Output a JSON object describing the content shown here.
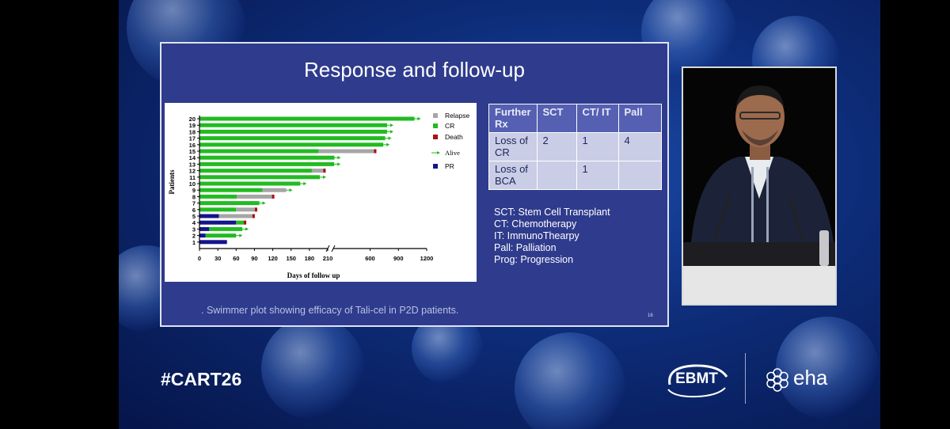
{
  "slide": {
    "title": "Response and follow-up",
    "caption": ". Swimmer plot showing efficacy of Tali-cel in P2D patients.",
    "page_number": "16",
    "table": {
      "header": [
        "Further Rx",
        "SCT",
        "CT/ IT",
        "Pall"
      ],
      "rows": [
        [
          "Loss of CR",
          "2",
          "1",
          "4"
        ],
        [
          "Loss of BCA",
          "",
          "1",
          ""
        ]
      ]
    },
    "abbreviations": [
      "SCT: Stem Cell Transplant",
      "CT: Chemotherapy",
      "IT: ImmunoThearpy",
      "Pall: Palliation",
      "Prog: Progression"
    ]
  },
  "footer": {
    "hashtag": "#CART26",
    "logo_left": "EBMT",
    "logo_right": "eha"
  },
  "colors": {
    "CR": "#22bb22",
    "Relapse": "#a6a6a6",
    "Death": "#aa1111",
    "Alive": "#22bb22",
    "PR": "#14148c"
  },
  "chart_data": {
    "type": "bar",
    "subtype": "swimmer",
    "xlabel": "Days of follow up",
    "ylabel": "Patients",
    "x_ticks": [
      "0",
      "30",
      "60",
      "90",
      "120",
      "150",
      "180",
      "210",
      "600",
      "900",
      "1200"
    ],
    "x_axis_break": "between 210 and 600",
    "legend": [
      "Relapse",
      "CR",
      "Death",
      "Alive",
      "PR"
    ],
    "legend_position": "right",
    "patients": [
      {
        "id": "20",
        "segments": [
          {
            "status": "CR",
            "from": 0,
            "to": 1070
          }
        ],
        "alive": true
      },
      {
        "id": "19",
        "segments": [
          {
            "status": "CR",
            "from": 0,
            "to": 780
          }
        ],
        "alive": true
      },
      {
        "id": "18",
        "segments": [
          {
            "status": "CR",
            "from": 0,
            "to": 780
          }
        ],
        "alive": true
      },
      {
        "id": "17",
        "segments": [
          {
            "status": "CR",
            "from": 0,
            "to": 760
          }
        ],
        "alive": true
      },
      {
        "id": "16",
        "segments": [
          {
            "status": "CR",
            "from": 0,
            "to": 740
          }
        ],
        "alive": true
      },
      {
        "id": "15",
        "segments": [
          {
            "status": "CR",
            "from": 0,
            "to": 195
          },
          {
            "status": "Relapse",
            "from": 195,
            "to": 650
          }
        ],
        "death": true
      },
      {
        "id": "14",
        "segments": [
          {
            "status": "CR",
            "from": 0,
            "to": 222
          }
        ],
        "alive": true
      },
      {
        "id": "13",
        "segments": [
          {
            "status": "CR",
            "from": 0,
            "to": 220
          }
        ],
        "alive": true
      },
      {
        "id": "12",
        "segments": [
          {
            "status": "CR",
            "from": 0,
            "to": 184
          },
          {
            "status": "Relapse",
            "from": 184,
            "to": 204
          }
        ],
        "death": true
      },
      {
        "id": "11",
        "segments": [
          {
            "status": "CR",
            "from": 0,
            "to": 197
          }
        ],
        "alive": true
      },
      {
        "id": "10",
        "segments": [
          {
            "status": "CR",
            "from": 0,
            "to": 165
          }
        ],
        "alive": true
      },
      {
        "id": "9",
        "segments": [
          {
            "status": "CR",
            "from": 0,
            "to": 103
          },
          {
            "status": "Relapse",
            "from": 103,
            "to": 142
          }
        ],
        "alive": true
      },
      {
        "id": "8",
        "segments": [
          {
            "status": "CR",
            "from": 0,
            "to": 61
          },
          {
            "status": "Relapse",
            "from": 61,
            "to": 120
          }
        ],
        "death": true
      },
      {
        "id": "7",
        "segments": [
          {
            "status": "CR",
            "from": 0,
            "to": 98
          }
        ],
        "alive": true
      },
      {
        "id": "6",
        "segments": [
          {
            "status": "CR",
            "from": 0,
            "to": 60
          },
          {
            "status": "Relapse",
            "from": 60,
            "to": 92
          }
        ],
        "death": true
      },
      {
        "id": "5",
        "segments": [
          {
            "status": "PR",
            "from": 0,
            "to": 32
          },
          {
            "status": "Relapse",
            "from": 32,
            "to": 88
          }
        ],
        "death": true
      },
      {
        "id": "4",
        "segments": [
          {
            "status": "PR",
            "from": 0,
            "to": 60
          },
          {
            "status": "CR",
            "from": 60,
            "to": 74
          }
        ],
        "death": true
      },
      {
        "id": "3",
        "segments": [
          {
            "status": "PR",
            "from": 0,
            "to": 16
          },
          {
            "status": "CR",
            "from": 16,
            "to": 70
          }
        ],
        "alive": true
      },
      {
        "id": "2",
        "segments": [
          {
            "status": "PR",
            "from": 0,
            "to": 10
          },
          {
            "status": "CR",
            "from": 10,
            "to": 60
          }
        ],
        "alive": true
      },
      {
        "id": "1",
        "segments": [
          {
            "status": "PR",
            "from": 0,
            "to": 45
          }
        ],
        "alive": false
      }
    ]
  }
}
